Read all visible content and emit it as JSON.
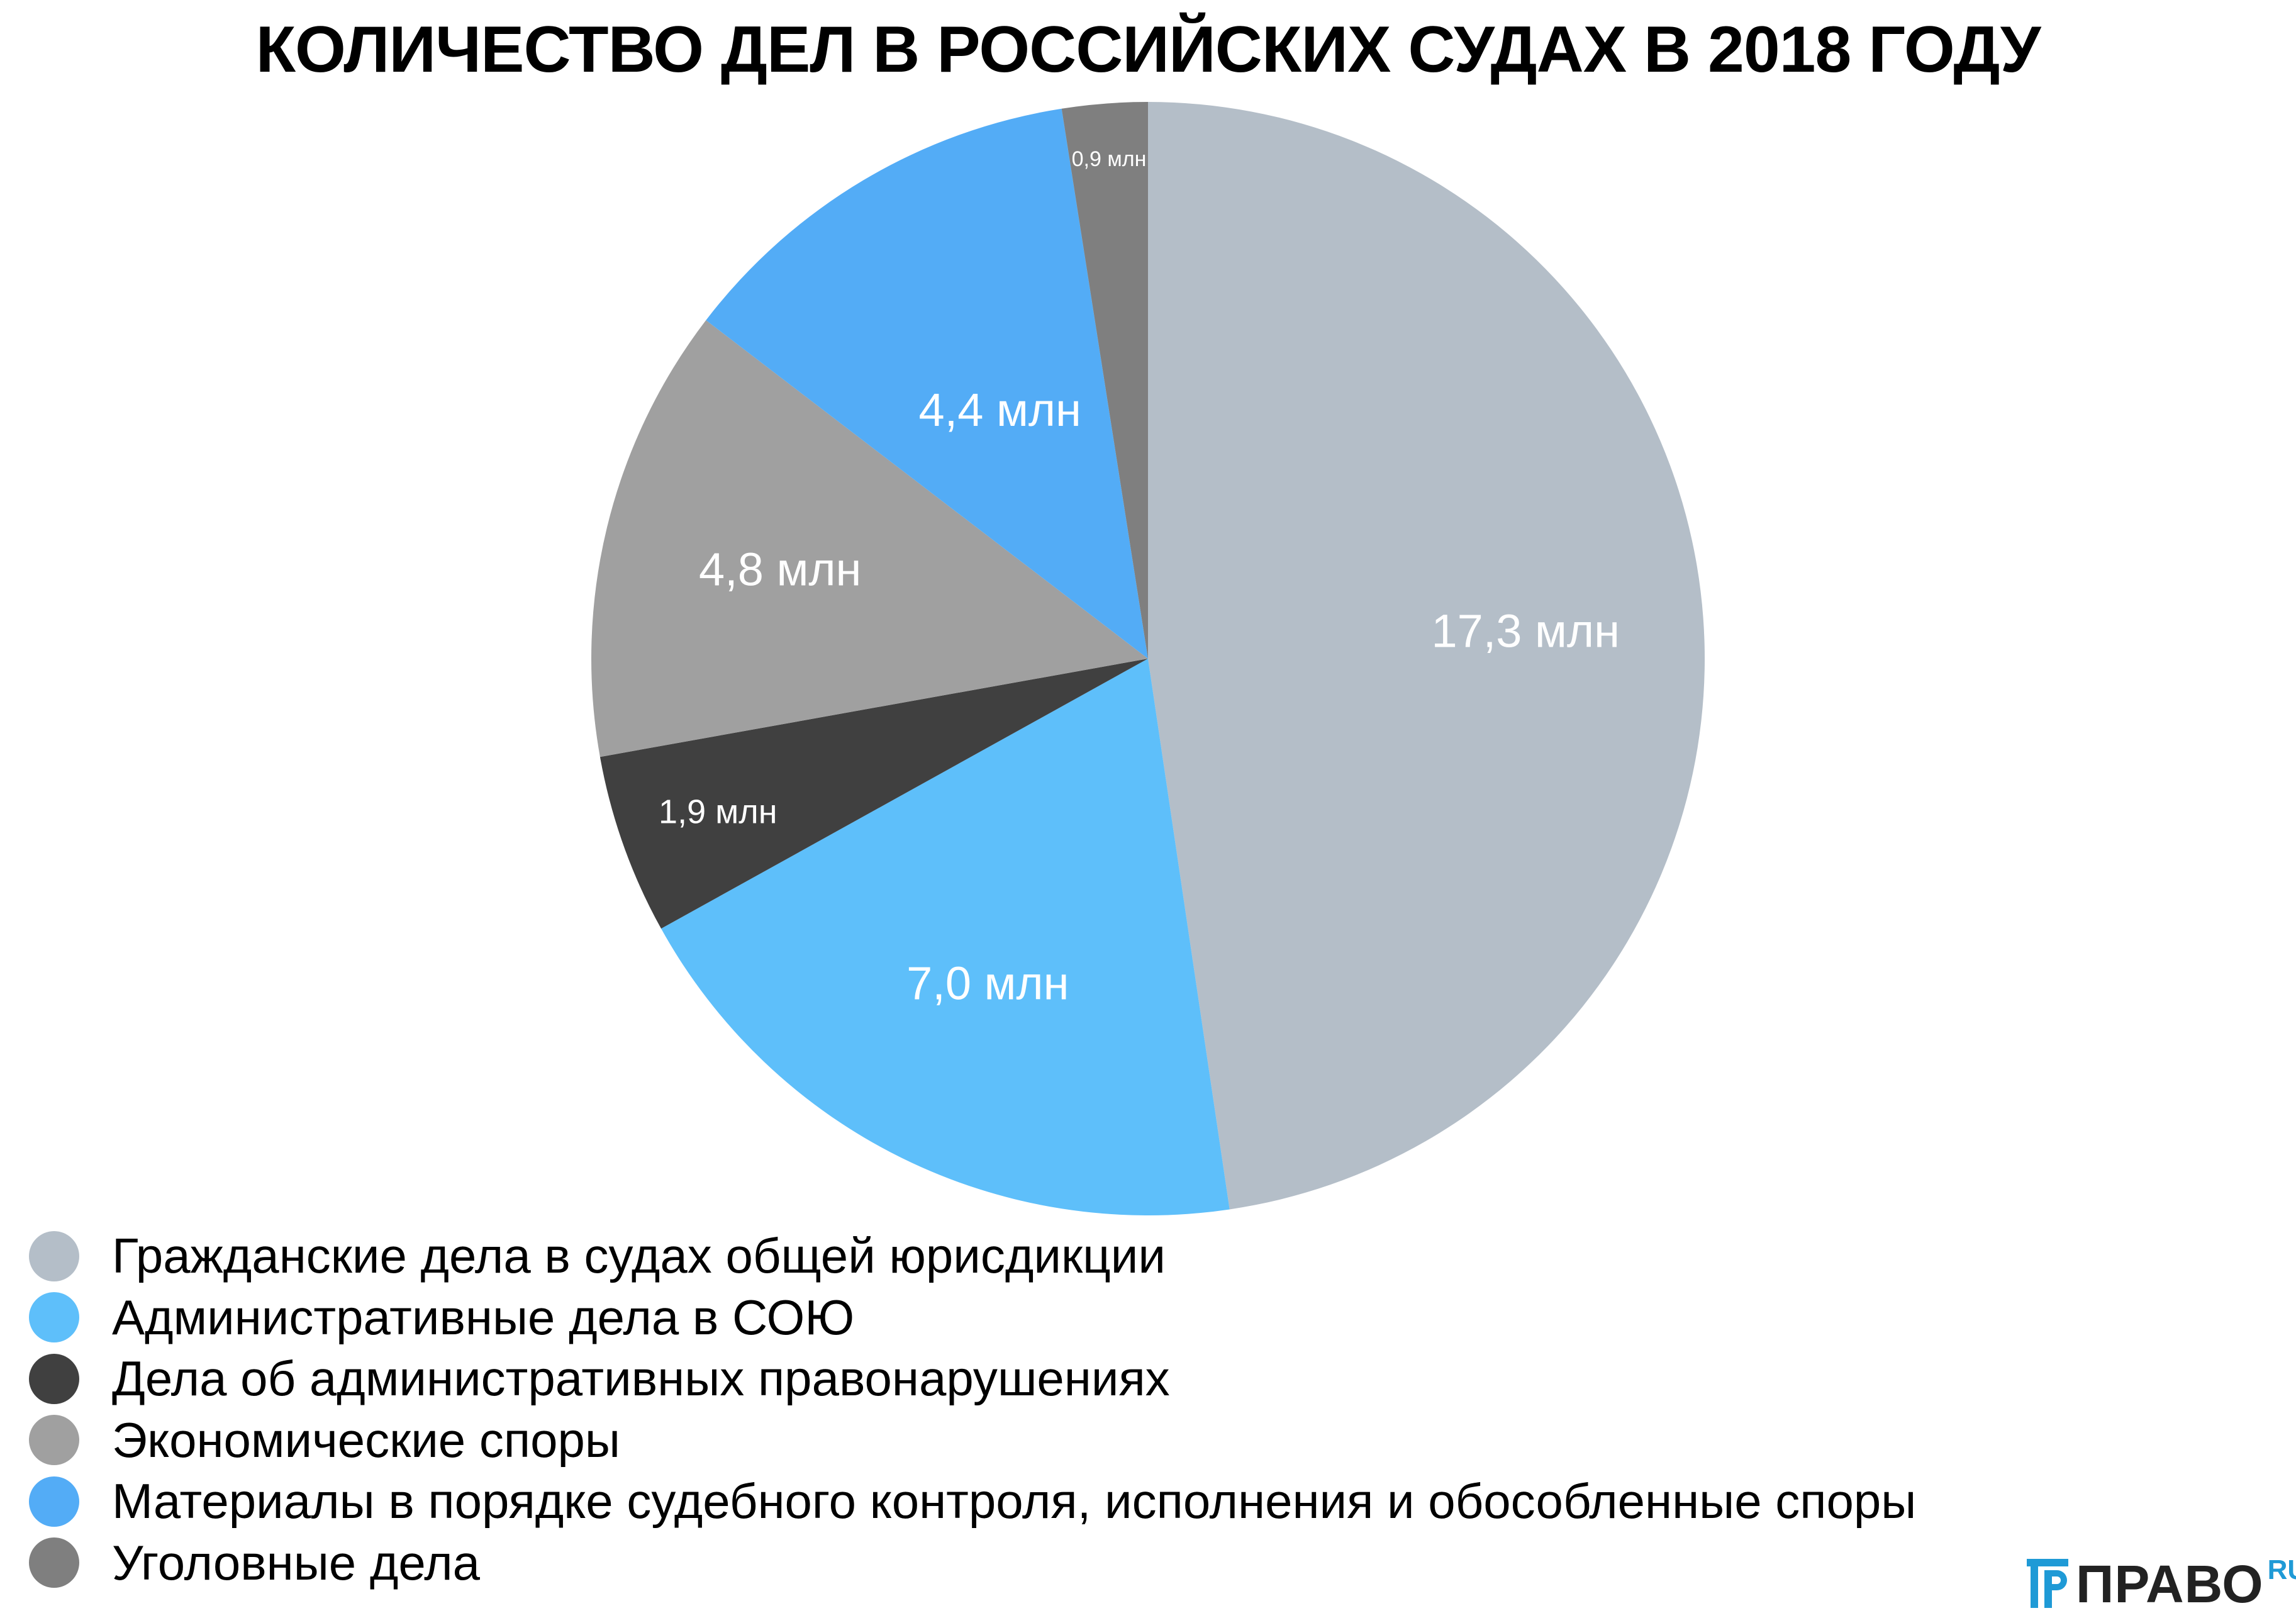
{
  "title": "КОЛИЧЕСТВО ДЕЛ В РОССИЙСКИХ СУДАХ В 2018 ГОДУ",
  "chart_data": {
    "type": "pie",
    "title": "КОЛИЧЕСТВО ДЕЛ В РОССИЙСКИХ СУДАХ В 2018 ГОДУ",
    "unit": "млн",
    "start": "12 o'clock",
    "direction": "clockwise",
    "legend_position": "bottom-left",
    "slices": [
      {
        "name": "Гражданские дела в судах общей юрисдикции",
        "value": 17.3,
        "label": "17,3 млн",
        "color": "#b4bec8"
      },
      {
        "name": "Административные дела в СОЮ",
        "value": 7.0,
        "label": "7,0 млн",
        "color": "#5ebffa"
      },
      {
        "name": "Дела об административных правонарушениях",
        "value": 1.9,
        "label": "1,9 млн",
        "color": "#404040"
      },
      {
        "name": "Экономические споры",
        "value": 4.8,
        "label": "4,8 млн",
        "color": "#a0a0a0"
      },
      {
        "name": "Материалы в порядке судебного контроля, исполнения и обособленные споры",
        "value": 4.4,
        "label": "4,4 млн",
        "color": "#53acf6"
      },
      {
        "name": "Уголовные дела",
        "value": 0.9,
        "label": "0,9 млн",
        "color": "#7f7f7f"
      }
    ]
  },
  "branding": {
    "logo_icon": "pravo-logo-icon",
    "logo_text": "ПРАВО",
    "logo_suffix": "RU",
    "logo_color": "#1f9ad6"
  }
}
